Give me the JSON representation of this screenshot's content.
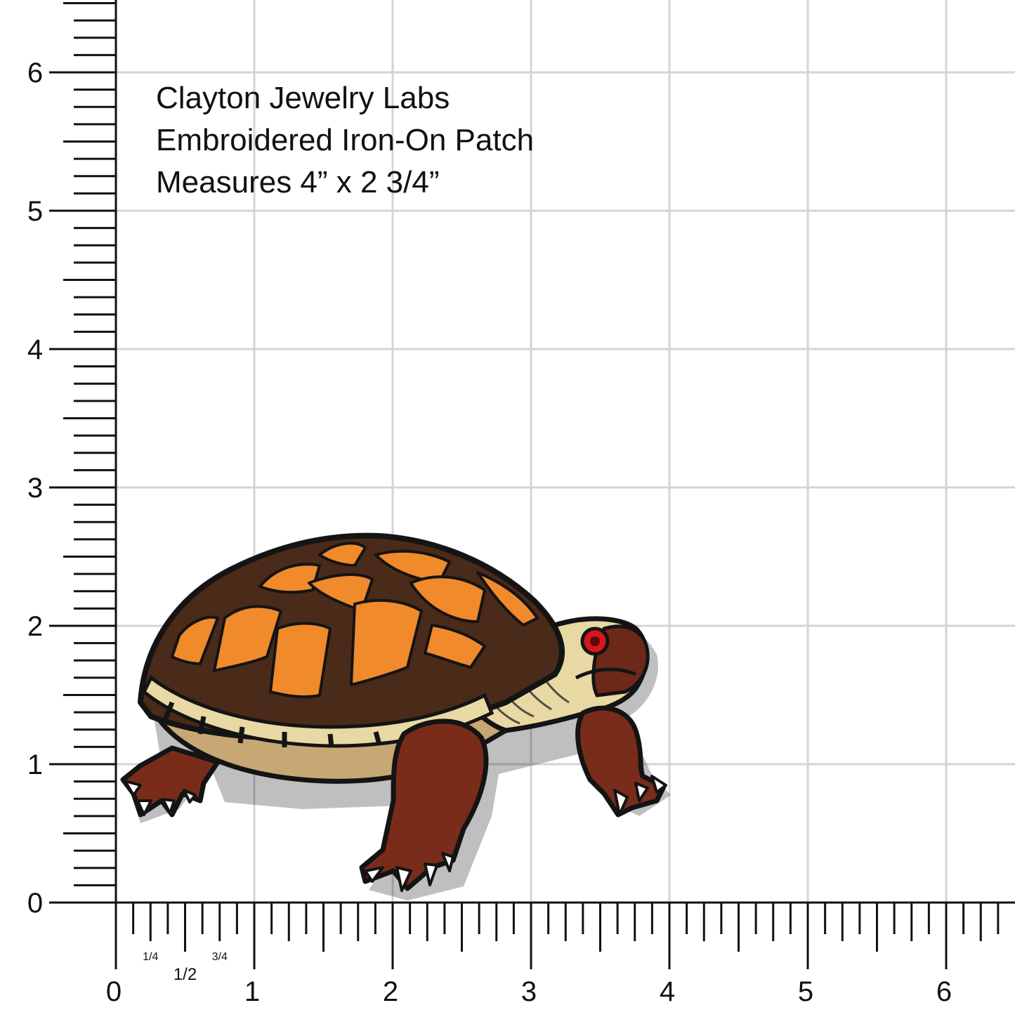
{
  "caption": {
    "line1": "Clayton Jewelry Labs",
    "line2": "Embroidered Iron-On Patch",
    "line3": "Measures 4” x 2 3/4”"
  },
  "ruler": {
    "y_labels": [
      "0",
      "1",
      "2",
      "3",
      "4",
      "5",
      "6"
    ],
    "x_labels": [
      "0",
      "1",
      "2",
      "3",
      "4",
      "5",
      "6"
    ],
    "x_fraction_labels": [
      "1/4",
      "1/2",
      "3/4"
    ]
  },
  "colors": {
    "shell_dark": "#4a2a18",
    "shell_orange": "#f08a2a",
    "skin_light": "#e8d9a4",
    "skin_mid": "#c7a874",
    "legs_brown": "#7a2c1a",
    "eye_red": "#d8171c",
    "outline": "#141414"
  },
  "subject": {
    "icon": "box-turtle-patch-icon"
  }
}
